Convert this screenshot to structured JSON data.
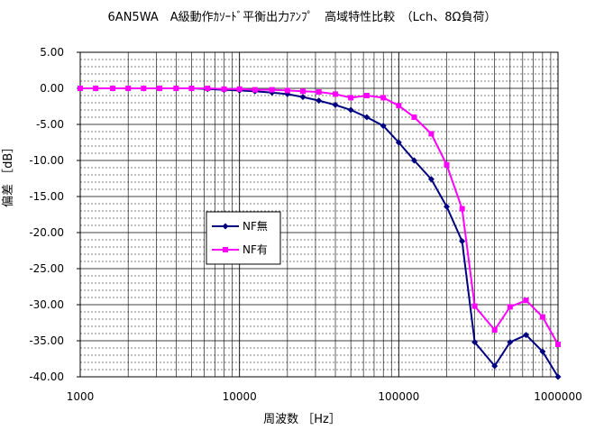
{
  "chart_data": {
    "type": "line",
    "title": "6AN5WA　A級動作ｶｿｰﾄﾞ平衡出力ｱﾝﾌﾟ　高域特性比較　（Lch、8Ω負荷）",
    "xlabel": "周波数 ［Hz］",
    "ylabel": "偏差 ［dB］",
    "x_scale": "log",
    "xlim": [
      1000,
      1000000
    ],
    "ylim": [
      -40,
      5
    ],
    "x_ticks": [
      "1000",
      "10000",
      "100000",
      "1000000"
    ],
    "y_ticks": [
      "5.00",
      "0.00",
      "-5.00",
      "-10.00",
      "-15.00",
      "-20.00",
      "-25.00",
      "-30.00",
      "-35.00",
      "-40.00"
    ],
    "grid": true,
    "legend_position": "center-left",
    "series": [
      {
        "name": "NF無",
        "color": "#000080",
        "marker": "diamond",
        "points": [
          [
            1000,
            0
          ],
          [
            1250,
            0
          ],
          [
            1600,
            0
          ],
          [
            2000,
            0
          ],
          [
            2500,
            0
          ],
          [
            3150,
            0
          ],
          [
            4000,
            0
          ],
          [
            5000,
            0
          ],
          [
            6300,
            -0.1
          ],
          [
            8000,
            -0.2
          ],
          [
            10000,
            -0.3
          ],
          [
            12500,
            -0.4
          ],
          [
            16000,
            -0.6
          ],
          [
            20000,
            -0.8
          ],
          [
            25000,
            -1.2
          ],
          [
            31500,
            -1.7
          ],
          [
            40000,
            -2.3
          ],
          [
            50000,
            -3.0
          ],
          [
            63000,
            -4.0
          ],
          [
            80000,
            -5.2
          ],
          [
            100000,
            -7.5
          ],
          [
            125000,
            -10.0
          ],
          [
            160000,
            -12.6
          ],
          [
            200000,
            -16.4
          ],
          [
            250000,
            -21.2
          ],
          [
            300000,
            -35.2
          ],
          [
            400000,
            -38.5
          ],
          [
            500000,
            -35.2
          ],
          [
            630000,
            -34.2
          ],
          [
            800000,
            -36.5
          ],
          [
            1000000,
            -40.0
          ]
        ]
      },
      {
        "name": "NF有",
        "color": "#ff00ff",
        "marker": "square",
        "points": [
          [
            1000,
            0
          ],
          [
            1250,
            0
          ],
          [
            1600,
            0
          ],
          [
            2000,
            0
          ],
          [
            2500,
            0
          ],
          [
            3150,
            0
          ],
          [
            4000,
            0
          ],
          [
            5000,
            0
          ],
          [
            6300,
            0
          ],
          [
            8000,
            -0.1
          ],
          [
            10000,
            -0.1
          ],
          [
            12500,
            -0.2
          ],
          [
            16000,
            -0.2
          ],
          [
            20000,
            -0.3
          ],
          [
            25000,
            -0.4
          ],
          [
            31500,
            -0.5
          ],
          [
            40000,
            -0.8
          ],
          [
            50000,
            -1.3
          ],
          [
            63000,
            -1.0
          ],
          [
            80000,
            -1.3
          ],
          [
            100000,
            -2.4
          ],
          [
            125000,
            -4.0
          ],
          [
            160000,
            -6.3
          ],
          [
            200000,
            -10.6
          ],
          [
            250000,
            -16.7
          ],
          [
            300000,
            -30.2
          ],
          [
            400000,
            -33.5
          ],
          [
            500000,
            -30.3
          ],
          [
            630000,
            -29.4
          ],
          [
            800000,
            -31.7
          ],
          [
            1000000,
            -35.5
          ]
        ]
      }
    ]
  }
}
